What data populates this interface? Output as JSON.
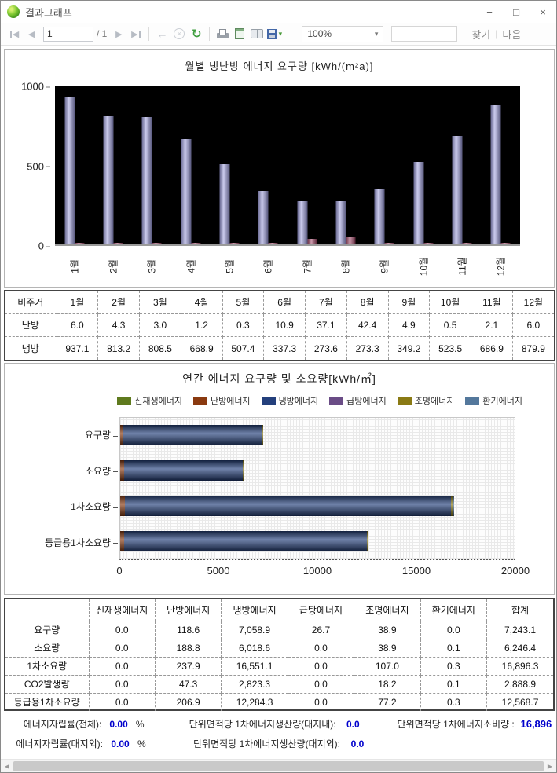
{
  "window": {
    "title": "결과그래프",
    "buttons": {
      "minimize": "−",
      "maximize": "□",
      "close": "×"
    }
  },
  "toolbar": {
    "page_current": "1",
    "page_total": "/ 1",
    "zoom": "100%",
    "search_value": "",
    "find": "찾기",
    "sep": "|",
    "next": "다음"
  },
  "icons": {
    "prev": "◀",
    "next": "▶",
    "back": "←",
    "cancel": "×",
    "refresh": "↻",
    "caret": "▾",
    "scroll_left": "◀",
    "scroll_right": "▶"
  },
  "chart_data": [
    {
      "type": "bar",
      "title": "월별 냉난방 에너지 요구량 [kWh/(m²a)]",
      "categories": [
        "1월",
        "2월",
        "3월",
        "4월",
        "5월",
        "6월",
        "7월",
        "8월",
        "9월",
        "10월",
        "11월",
        "12월"
      ],
      "series": [
        {
          "name": "냉방",
          "color": "#9f9fdd",
          "values": [
            937.1,
            813.2,
            808.5,
            668.9,
            507.4,
            337.3,
            273.6,
            273.3,
            349.2,
            523.5,
            686.9,
            879.9
          ]
        },
        {
          "name": "난방",
          "color": "#a04868",
          "values": [
            6.0,
            4.3,
            3.0,
            1.2,
            0.3,
            10.9,
            37.1,
            42.4,
            4.9,
            0.5,
            2.1,
            6.0
          ]
        }
      ],
      "ylim": [
        0,
        1000
      ],
      "yticks": [
        "1000",
        "500",
        "0"
      ],
      "plot_bg": "#000000",
      "legend_position": "none"
    },
    {
      "type": "bar-horizontal-stacked",
      "title": "연간 에너지 요구량 및 소요량[kWh/㎡]",
      "categories": [
        "요구량",
        "소요량",
        "1차소요량",
        "등급용1차소요량"
      ],
      "series": [
        {
          "name": "신재생에너지",
          "color": "#5f7a1e",
          "values": [
            0,
            0,
            0,
            0
          ]
        },
        {
          "name": "난방에너지",
          "color": "#8a3a10",
          "values": [
            118.6,
            188.8,
            237.9,
            206.9
          ]
        },
        {
          "name": "냉방에너지",
          "color": "#24407c",
          "values": [
            7058.9,
            6018.6,
            16551.1,
            12284.3
          ]
        },
        {
          "name": "급탕에너지",
          "color": "#6a4c86",
          "values": [
            26.7,
            0,
            0,
            0
          ]
        },
        {
          "name": "조명에너지",
          "color": "#8a7a14",
          "values": [
            38.9,
            38.9,
            107.0,
            77.2
          ]
        },
        {
          "name": "환기에너지",
          "color": "#54789c",
          "values": [
            0,
            0.1,
            0.3,
            0.3
          ]
        }
      ],
      "xlim": [
        0,
        20000
      ],
      "xticks": [
        "0",
        "5000",
        "10000",
        "15000",
        "20000"
      ],
      "legend_position": "top-right",
      "grid": "dotted"
    }
  ],
  "table1": {
    "header": [
      "비주거",
      "1월",
      "2월",
      "3월",
      "4월",
      "5월",
      "6월",
      "7월",
      "8월",
      "9월",
      "10월",
      "11월",
      "12월"
    ],
    "rows": [
      {
        "label": "난방",
        "values": [
          "6.0",
          "4.3",
          "3.0",
          "1.2",
          "0.3",
          "10.9",
          "37.1",
          "42.4",
          "4.9",
          "0.5",
          "2.1",
          "6.0"
        ]
      },
      {
        "label": "냉방",
        "values": [
          "937.1",
          "813.2",
          "808.5",
          "668.9",
          "507.4",
          "337.3",
          "273.6",
          "273.3",
          "349.2",
          "523.5",
          "686.9",
          "879.9"
        ]
      }
    ]
  },
  "table2": {
    "header": [
      "",
      "신재생에너지",
      "난방에너지",
      "냉방에너지",
      "급탕에너지",
      "조명에너지",
      "환기에너지",
      "합계"
    ],
    "rows": [
      {
        "label": "요구량",
        "values": [
          "0.0",
          "118.6",
          "7,058.9",
          "26.7",
          "38.9",
          "0.0",
          "7,243.1"
        ]
      },
      {
        "label": "소요량",
        "values": [
          "0.0",
          "188.8",
          "6,018.6",
          "0.0",
          "38.9",
          "0.1",
          "6,246.4"
        ]
      },
      {
        "label": "1차소요량",
        "values": [
          "0.0",
          "237.9",
          "16,551.1",
          "0.0",
          "107.0",
          "0.3",
          "16,896.3"
        ]
      },
      {
        "label": "CO2발생량",
        "values": [
          "0.0",
          "47.3",
          "2,823.3",
          "0.0",
          "18.2",
          "0.1",
          "2,888.9"
        ]
      },
      {
        "label": "등급용1차소요량",
        "values": [
          "0.0",
          "206.9",
          "12,284.3",
          "0.0",
          "77.2",
          "0.3",
          "12,568.7"
        ]
      }
    ]
  },
  "summary": {
    "rows": [
      [
        {
          "label": "에너지자립률(전체):",
          "value": "0.00",
          "unit": "%"
        },
        {
          "label": "단위면적당 1차에너지생산량(대지내):",
          "value": "0.0"
        },
        {
          "label": "단위면적당 1차에너지소비량 :",
          "value": "16,896",
          "last": true
        }
      ],
      [
        {
          "label": "에너지자립률(대지외):",
          "value": "0.00",
          "unit": "%"
        },
        {
          "label": "단위면적당 1차에너지생산량(대지외):",
          "value": "0.0"
        }
      ]
    ]
  }
}
